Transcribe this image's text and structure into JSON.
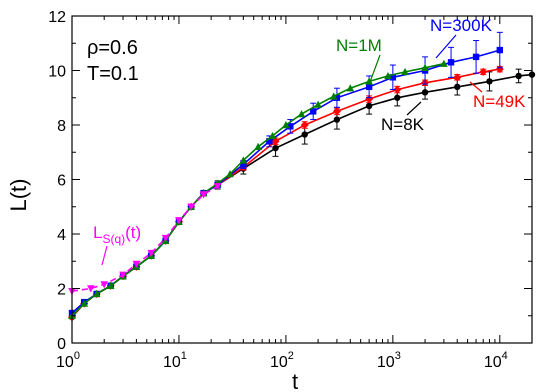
{
  "chart_data": {
    "type": "line",
    "xlabel": "t",
    "ylabel": "L(t)",
    "xscale": "log",
    "xlim": [
      1,
      20000
    ],
    "ylim": [
      0,
      12
    ],
    "x_ticks": [
      {
        "value": 1,
        "base": "10",
        "exp": "0"
      },
      {
        "value": 10,
        "base": "10",
        "exp": "1"
      },
      {
        "value": 100,
        "base": "10",
        "exp": "2"
      },
      {
        "value": 1000,
        "base": "10",
        "exp": "3"
      },
      {
        "value": 10000,
        "base": "10",
        "exp": "4"
      }
    ],
    "y_ticks": [
      "0",
      "2",
      "4",
      "6",
      "8",
      "10",
      "12"
    ],
    "annotations": {
      "rho": "ρ=0.6",
      "temp": "T=0.1"
    },
    "series": [
      {
        "name": "N=8K",
        "color": "#000000",
        "marker": "circle",
        "x": [
          1,
          1.3,
          1.7,
          2.3,
          3,
          4,
          5.5,
          7.5,
          10,
          13,
          17,
          23,
          40,
          80,
          150,
          300,
          600,
          1100,
          2000,
          4000,
          8000,
          15000,
          20000
        ],
        "y": [
          0.95,
          1.45,
          1.8,
          2.1,
          2.45,
          2.8,
          3.2,
          3.75,
          4.45,
          5.0,
          5.5,
          5.8,
          6.4,
          7.15,
          7.65,
          8.2,
          8.7,
          9.0,
          9.2,
          9.4,
          9.6,
          9.8,
          9.85
        ],
        "err": [
          0,
          0,
          0,
          0,
          0,
          0,
          0,
          0,
          0,
          0,
          0,
          0.15,
          0.2,
          0.3,
          0.35,
          0.35,
          0.3,
          0.3,
          0.25,
          0.3,
          0.35,
          0.25,
          0
        ]
      },
      {
        "name": "N=49K",
        "color": "#ff0000",
        "marker": "diamond",
        "x": [
          1,
          1.3,
          1.7,
          2.3,
          3,
          4,
          5.5,
          7.5,
          10,
          13,
          17,
          23,
          40,
          80,
          150,
          300,
          600,
          1100,
          2000,
          4000,
          7000,
          10000
        ],
        "y": [
          0.95,
          1.45,
          1.8,
          2.1,
          2.45,
          2.8,
          3.2,
          3.75,
          4.45,
          5.0,
          5.5,
          5.8,
          6.45,
          7.4,
          8.0,
          8.5,
          8.95,
          9.3,
          9.55,
          9.75,
          9.95,
          10.05
        ],
        "err": [
          0,
          0,
          0,
          0,
          0,
          0,
          0,
          0,
          0,
          0,
          0,
          0,
          0.1,
          0.12,
          0.12,
          0.12,
          0.12,
          0.12,
          0.1,
          0.1,
          0.1,
          0.1
        ]
      },
      {
        "name": "N=300K",
        "color": "#0000ff",
        "marker": "square",
        "x": [
          1,
          1.3,
          1.7,
          2.3,
          3,
          4,
          5.5,
          7.5,
          10,
          13,
          17,
          23,
          40,
          70,
          110,
          180,
          300,
          600,
          1000,
          2000,
          3500,
          6000,
          10000
        ],
        "y": [
          1.1,
          1.5,
          1.8,
          2.1,
          2.45,
          2.8,
          3.2,
          3.75,
          4.45,
          5.0,
          5.5,
          5.8,
          6.55,
          7.4,
          7.95,
          8.5,
          9.0,
          9.4,
          9.75,
          10.0,
          10.3,
          10.5,
          10.75
        ],
        "err": [
          0,
          0,
          0,
          0,
          0,
          0,
          0,
          0,
          0,
          0,
          0,
          0,
          0.15,
          0.2,
          0.25,
          0.3,
          0.35,
          0.4,
          0.45,
          0.5,
          0.55,
          0.6,
          0.65
        ]
      },
      {
        "name": "N=1M",
        "color": "#008000",
        "marker": "triangle",
        "x": [
          1,
          1.3,
          1.7,
          2.3,
          3,
          4,
          5.5,
          7.5,
          10,
          13,
          17,
          23,
          30,
          40,
          55,
          75,
          100,
          140,
          200,
          280,
          400,
          600,
          900,
          1300,
          2000,
          3000
        ],
        "y": [
          1.0,
          1.45,
          1.8,
          2.1,
          2.45,
          2.8,
          3.2,
          3.75,
          4.45,
          5.0,
          5.5,
          5.85,
          6.2,
          6.7,
          7.2,
          7.6,
          8.0,
          8.4,
          8.75,
          9.05,
          9.35,
          9.6,
          9.8,
          9.95,
          10.1,
          10.25
        ],
        "err": []
      },
      {
        "name": "L_S(q)(t)",
        "color": "#ff00ff",
        "marker": "triangle-down",
        "dashed": true,
        "x": [
          1,
          1.5,
          2,
          3,
          4,
          5.5,
          7.5,
          10,
          13,
          17,
          23
        ],
        "y": [
          1.9,
          2.0,
          2.15,
          2.5,
          2.9,
          3.3,
          3.85,
          4.5,
          5.0,
          5.45,
          5.75
        ],
        "err": []
      }
    ],
    "series_labels": {
      "n8k": "N=8K",
      "n49k": "N=49K",
      "n300k": "N=300K",
      "n1m": "N=1M",
      "lsq_main": "L",
      "lsq_sub": "S(q)",
      "lsq_tail": "(t)"
    }
  }
}
